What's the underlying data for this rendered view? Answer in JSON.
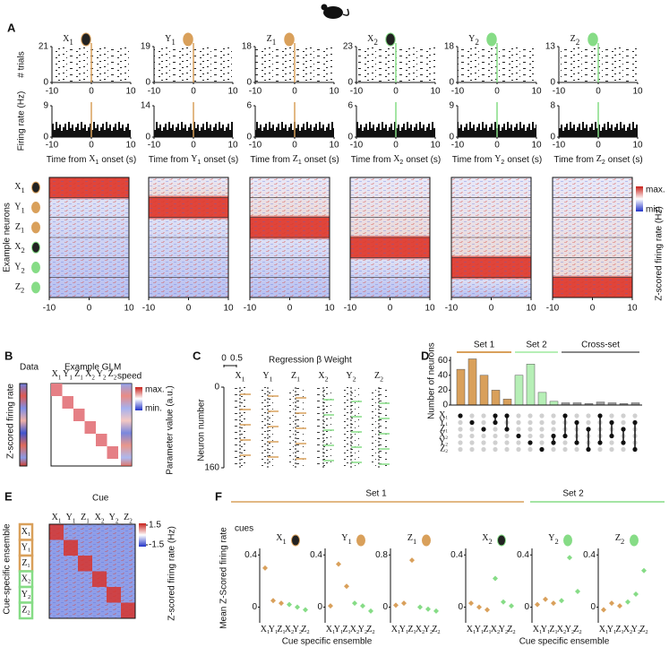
{
  "cues": [
    {
      "letter": "X",
      "sub": "1",
      "color": "#d9a05b"
    },
    {
      "letter": "Y",
      "sub": "1",
      "color": "#d9a05b"
    },
    {
      "letter": "Z",
      "sub": "1",
      "color": "#d9a05b"
    },
    {
      "letter": "X",
      "sub": "2",
      "color": "#86dc86"
    },
    {
      "letter": "Y",
      "sub": "2",
      "color": "#86dc86"
    },
    {
      "letter": "Z",
      "sub": "2",
      "color": "#86dc86"
    }
  ],
  "panel_a": {
    "label": "A",
    "trials_label": "# trials",
    "rate_label": "Firing rate (Hz)",
    "trials_ticks": [
      [
        0,
        21
      ],
      [
        0,
        19
      ],
      [
        0,
        18
      ],
      [
        0,
        23
      ],
      [
        0,
        18
      ],
      [
        0,
        13
      ]
    ],
    "rate_ticks": [
      [
        0,
        9
      ],
      [
        0,
        14
      ],
      [
        0,
        6
      ],
      [
        0,
        6
      ],
      [
        0,
        9
      ],
      [
        0,
        8
      ]
    ],
    "xticks": [
      -10,
      0,
      10
    ],
    "xlabel_pre": "Time from",
    "xlabel_post": "onset (s)",
    "heat_ylabel": "Example neurons",
    "heat_max": "max.",
    "heat_min": "min.",
    "heat_cbar_label": "Z-scored firing rate (Hz)"
  },
  "panel_b": {
    "label": "B",
    "data": "Data",
    "glm": "Example GLM",
    "extra": "speed",
    "ylabel": "Z-scored firing rate",
    "max": "max.",
    "min": "min.",
    "cbar_label": "Parameter value (a.u.)"
  },
  "panel_c": {
    "label": "C",
    "title": "Regression β Weight",
    "scale": [
      0,
      0.5
    ],
    "yticks": [
      0,
      160
    ],
    "ylabel": "Neuron number"
  },
  "panel_d": {
    "label": "D",
    "type": "bar",
    "ylabel": "Number of neurons",
    "ylim": [
      0,
      65
    ],
    "yticks": [
      0,
      20,
      40,
      60
    ],
    "series": [
      {
        "name": "Set 1",
        "color": "#d9a05b",
        "values": [
          48,
          62,
          40,
          20,
          8,
          null,
          null,
          null,
          null,
          null,
          null,
          null,
          null,
          null,
          null,
          null
        ]
      },
      {
        "name": "Set 2",
        "color": "#b6efb6",
        "values": [
          null,
          null,
          null,
          null,
          null,
          40,
          55,
          17,
          5,
          null,
          null,
          null,
          null,
          null,
          null,
          null
        ]
      },
      {
        "name": "Cross-set",
        "color": "#9a9a9a",
        "values": [
          null,
          null,
          null,
          null,
          null,
          null,
          null,
          null,
          null,
          3,
          3,
          2,
          4,
          3,
          2,
          3
        ]
      }
    ]
  },
  "panel_e": {
    "label": "E",
    "title": "Cue",
    "cbar_ticks": [
      1.5,
      -1.5
    ],
    "cbar_label": "Z-scored firing rate (Hz)",
    "ylabel": "Cue-specific ensemble"
  },
  "panel_f": {
    "label": "F",
    "sets": [
      "Set 1",
      "Set 2"
    ],
    "cues_label": "cues",
    "ylabel": "Mean Z-Scored firing rate",
    "xlabel": "Cue specific ensemble",
    "plots": [
      {
        "ylim": [
          -0.12,
          0.45
        ],
        "yticks": [
          0,
          0.4
        ],
        "values": [
          0.3,
          0.05,
          0.03,
          0.02,
          0.0,
          -0.02
        ]
      },
      {
        "ylim": [
          -0.12,
          0.45
        ],
        "yticks": [
          0,
          0.4
        ],
        "values": [
          0.01,
          0.33,
          0.16,
          0.03,
          0.01,
          -0.03
        ]
      },
      {
        "ylim": [
          -0.24,
          0.9
        ],
        "yticks": [
          0,
          0.8
        ],
        "values": [
          0.03,
          0.06,
          0.72,
          0.0,
          -0.03,
          -0.06
        ]
      },
      {
        "ylim": [
          -0.12,
          0.45
        ],
        "yticks": [
          0,
          0.4
        ],
        "values": [
          0.03,
          0.0,
          -0.02,
          0.22,
          0.04,
          0.01
        ]
      },
      {
        "ylim": [
          -0.12,
          0.45
        ],
        "yticks": [
          0,
          0.4
        ],
        "values": [
          0.02,
          0.06,
          0.03,
          0.05,
          0.38,
          0.12
        ]
      },
      {
        "ylim": [
          -0.12,
          0.45
        ],
        "yticks": [
          0,
          0.4
        ],
        "values": [
          -0.02,
          0.03,
          0.01,
          0.04,
          0.1,
          0.28
        ]
      }
    ]
  }
}
